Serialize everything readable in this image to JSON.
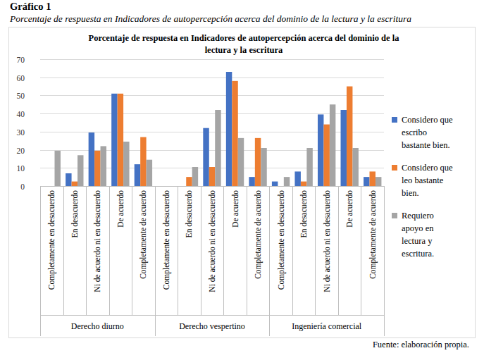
{
  "header": {
    "label": "Gráfico 1",
    "caption": "Porcentaje de respuesta en Indicadores de autopercepción acerca del dominio de la lectura y la escritura"
  },
  "source": "Fuente: elaboración propia.",
  "chart_data": {
    "type": "bar",
    "title": "Porcentaje de respuesta en Indicadores de autopercepción acerca del dominio de la lectura y la escritura",
    "categories": [
      "Completamente en desacuerdo",
      "En desacuerdo",
      "Ni de acuerdo ni en desacuerdo",
      "De acuerdo",
      "Completamente de acuerdo",
      "Completamente en desacuerdo",
      "En desacuerdo",
      "Ni de acuerdo ni en desacuerdo",
      "De acuerdo",
      "Completamente de acuerdo",
      "Completamente en desacuerdo",
      "En desacuerdo",
      "Ni de acuerdo ni en desacuerdo",
      "De acuerdo",
      "Completamente de acuerdo"
    ],
    "category_groups": [
      "Derecho diurno",
      "Derecho vespertino",
      "Ingeniería comercial"
    ],
    "series": [
      {
        "name": "Considero que escribo bastante bien.",
        "color": "#4472c4",
        "values": [
          0,
          7,
          29.5,
          51,
          12,
          0,
          0,
          32,
          63,
          5,
          2.5,
          8,
          39.5,
          42,
          5
        ]
      },
      {
        "name": "Considero que leo bastante bien.",
        "color": "#ed7d31",
        "values": [
          0,
          2.5,
          19.5,
          51,
          27,
          0,
          5,
          10.5,
          58,
          26.5,
          0,
          2.5,
          34,
          55,
          8
        ]
      },
      {
        "name": "Requiero apoyo en lectura y escritura.",
        "color": "#a5a5a5",
        "values": [
          19.5,
          17,
          22,
          24.5,
          14.5,
          0,
          10.5,
          42,
          26.5,
          21,
          5,
          21,
          45,
          21,
          5
        ]
      }
    ],
    "ylim": [
      0,
      70
    ],
    "yticks": [
      0,
      10,
      20,
      30,
      40,
      50,
      60,
      70
    ],
    "grid": true,
    "legend": "right"
  }
}
